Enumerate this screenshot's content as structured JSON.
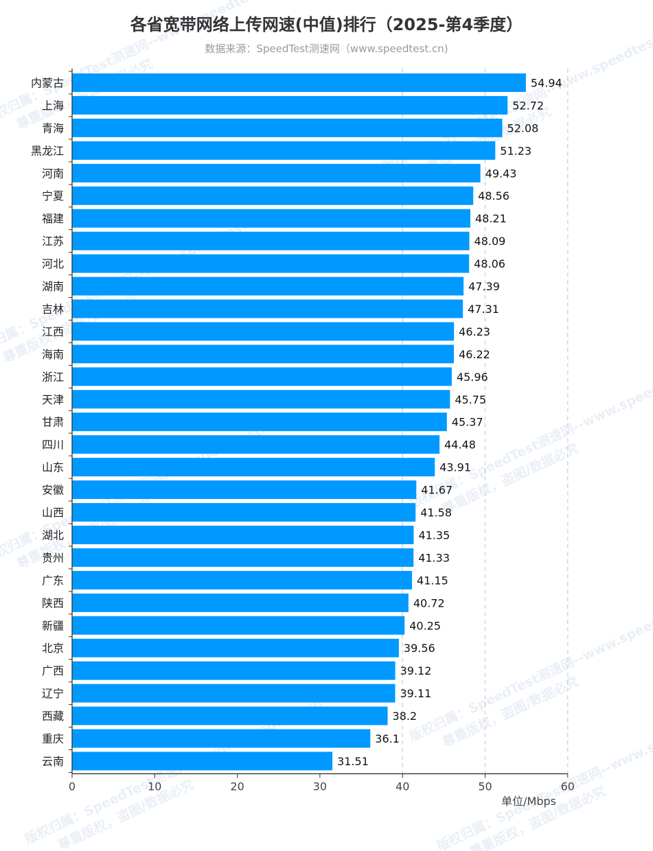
{
  "title": "各省宽带网络上传网速(中值)排行（2025-第4季度）",
  "subtitle": "数据来源：SpeedTest测速网（www.speedtest.cn)",
  "unit_label": "单位/Mbps",
  "watermark": {
    "line1": "版权归属：SpeedTest测速网--www.speedtest.cn",
    "line2": "尊重版权，盗图/数据必究"
  },
  "colors": {
    "bar": "#0099ff",
    "axis": "#333333",
    "grid": "#cccccc"
  },
  "chart_data": {
    "type": "bar",
    "orientation": "horizontal",
    "categories": [
      "内蒙古",
      "上海",
      "青海",
      "黑龙江",
      "河南",
      "宁夏",
      "福建",
      "江苏",
      "河北",
      "湖南",
      "吉林",
      "江西",
      "海南",
      "浙江",
      "天津",
      "甘肃",
      "四川",
      "山东",
      "安徽",
      "山西",
      "湖北",
      "贵州",
      "广东",
      "陕西",
      "新疆",
      "北京",
      "广西",
      "辽宁",
      "西藏",
      "重庆",
      "云南"
    ],
    "values": [
      54.94,
      52.72,
      52.08,
      51.23,
      49.43,
      48.56,
      48.21,
      48.09,
      48.06,
      47.39,
      47.31,
      46.23,
      46.22,
      45.96,
      45.75,
      45.37,
      44.48,
      43.91,
      41.67,
      41.58,
      41.35,
      41.33,
      41.15,
      40.72,
      40.25,
      39.56,
      39.12,
      39.11,
      38.2,
      36.1,
      31.51
    ],
    "value_labels": [
      "54.94",
      "52.72",
      "52.08",
      "51.23",
      "49.43",
      "48.56",
      "48.21",
      "48.09",
      "48.06",
      "47.39",
      "47.31",
      "46.23",
      "46.22",
      "45.96",
      "45.75",
      "45.37",
      "44.48",
      "43.91",
      "41.67",
      "41.58",
      "41.35",
      "41.33",
      "41.15",
      "40.72",
      "40.25",
      "39.56",
      "39.12",
      "39.11",
      "38.2",
      "36.1",
      "31.51"
    ],
    "xlim": [
      0,
      60
    ],
    "xticks": [
      0,
      10,
      20,
      30,
      40,
      50,
      60
    ],
    "tick_labels": [
      "0",
      "10",
      "20",
      "30",
      "40",
      "50",
      "60"
    ],
    "grid_values": [
      40,
      50,
      60
    ],
    "grid": "dashed vertical",
    "legend": "none"
  }
}
